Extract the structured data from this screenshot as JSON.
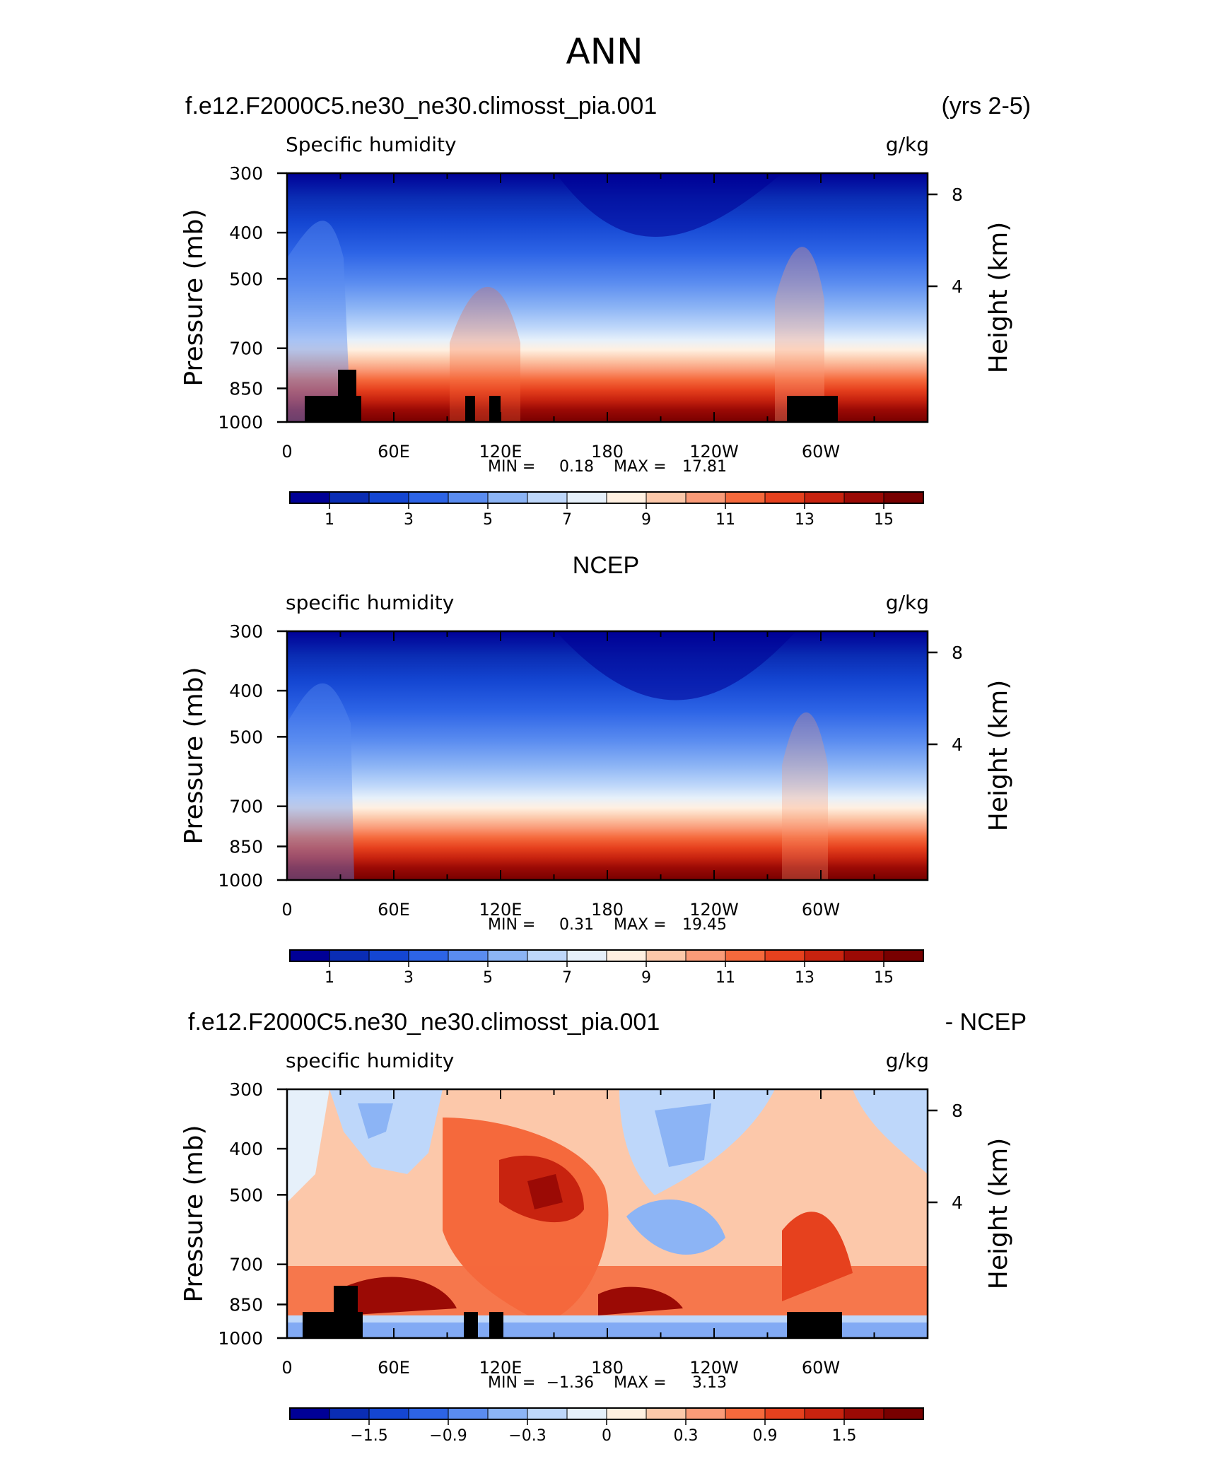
{
  "page_title": "ANN",
  "chart_data": [
    {
      "type": "heatmap",
      "case_label": "f.e12.F2000C5.ne30_ne30.climosst_pia.001",
      "right_label": "(yrs 2-5)",
      "title": "Specific humidity",
      "units": "g/kg",
      "ylabel": "Pressure (mb)",
      "y2label": "Height (km)",
      "pressure_ticks": [
        "300",
        "400",
        "500",
        "700",
        "850",
        "1000"
      ],
      "height_ticks": [
        "8",
        "4"
      ],
      "x_ticks": [
        "0",
        "60E",
        "120E",
        "180",
        "120W",
        "60W"
      ],
      "min_label": "MIN =",
      "min": "0.18",
      "max_label": "MAX =",
      "max": "17.81",
      "colorbar_labels": [
        "1",
        "3",
        "5",
        "7",
        "9",
        "11",
        "13",
        "15"
      ],
      "has_topography": true
    },
    {
      "type": "heatmap",
      "case_label": "NCEP",
      "right_label": "",
      "title": "specific humidity",
      "units": "g/kg",
      "ylabel": "Pressure (mb)",
      "y2label": "Height (km)",
      "pressure_ticks": [
        "300",
        "400",
        "500",
        "700",
        "850",
        "1000"
      ],
      "height_ticks": [
        "8",
        "4"
      ],
      "x_ticks": [
        "0",
        "60E",
        "120E",
        "180",
        "120W",
        "60W"
      ],
      "min_label": "MIN =",
      "min": "0.31",
      "max_label": "MAX =",
      "max": "19.45",
      "colorbar_labels": [
        "1",
        "3",
        "5",
        "7",
        "9",
        "11",
        "13",
        "15"
      ],
      "has_topography": false
    },
    {
      "type": "heatmap",
      "case_label": "f.e12.F2000C5.ne30_ne30.climosst_pia.001",
      "right_label": "- NCEP",
      "title": "specific humidity",
      "units": "g/kg",
      "ylabel": "Pressure (mb)",
      "y2label": "Height (km)",
      "pressure_ticks": [
        "300",
        "400",
        "500",
        "700",
        "850",
        "1000"
      ],
      "height_ticks": [
        "8",
        "4"
      ],
      "x_ticks": [
        "0",
        "60E",
        "120E",
        "180",
        "120W",
        "60W"
      ],
      "min_label": "MIN =",
      "min": "−1.36",
      "max_label": "MAX =",
      "max": "3.13",
      "colorbar_labels": [
        "−1.5",
        "−0.9",
        "−0.3",
        "0",
        "0.3",
        "0.9",
        "1.5"
      ],
      "has_topography": true
    }
  ],
  "colors": {
    "palette": [
      "#000096",
      "#0a2db4",
      "#1446d2",
      "#2d64e6",
      "#5a8cf0",
      "#8cb4f5",
      "#bed7fa",
      "#e6f0fa",
      "#fff0e1",
      "#fcc8aa",
      "#fa9b78",
      "#f5693c",
      "#e6411e",
      "#c8230f",
      "#9b0a05",
      "#780000"
    ],
    "topography": "#000000"
  }
}
